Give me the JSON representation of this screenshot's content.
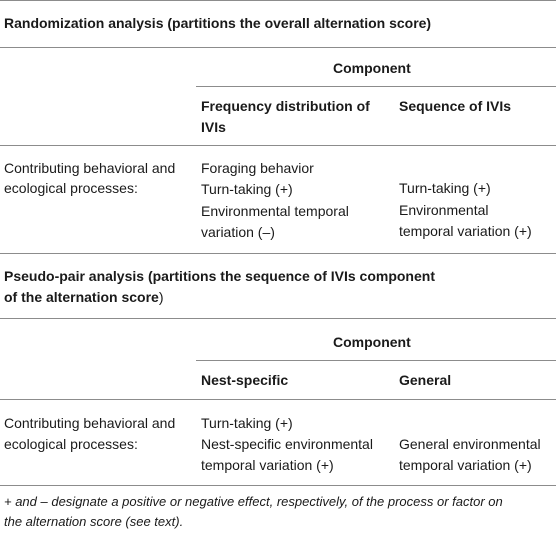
{
  "section1": {
    "title": "Randomization analysis (partitions the overall alternation score)",
    "component_header": "Component",
    "col1_header": [
      "Frequency distribution of",
      "IVIs"
    ],
    "col2_header": "Sequence of IVIs",
    "row_label": [
      "Contributing behavioral and",
      "ecological processes:"
    ],
    "col1_items": [
      "Foraging behavior",
      "Turn-taking (+)",
      "Environmental temporal",
      "variation (–)"
    ],
    "col2_items": [
      "Turn-taking (+)",
      "Environmental",
      "temporal variation (+)"
    ]
  },
  "section2": {
    "title_bold": [
      "Pseudo-pair analysis (partitions the sequence of IVIs component",
      "of the alternation score"
    ],
    "title_tail": ")",
    "component_header": "Component",
    "col1_header": "Nest-specific",
    "col2_header": "General",
    "row_label": [
      "Contributing behavioral and",
      "ecological processes:"
    ],
    "col1_items": [
      "Turn-taking (+)",
      "Nest-specific environmental",
      "temporal variation (+)"
    ],
    "col2_items": [
      "General environmental",
      "temporal variation (+)"
    ]
  },
  "footnote": [
    "+ and – designate a positive or negative effect, respectively, of the process or factor on",
    "the alternation score (see text)."
  ]
}
